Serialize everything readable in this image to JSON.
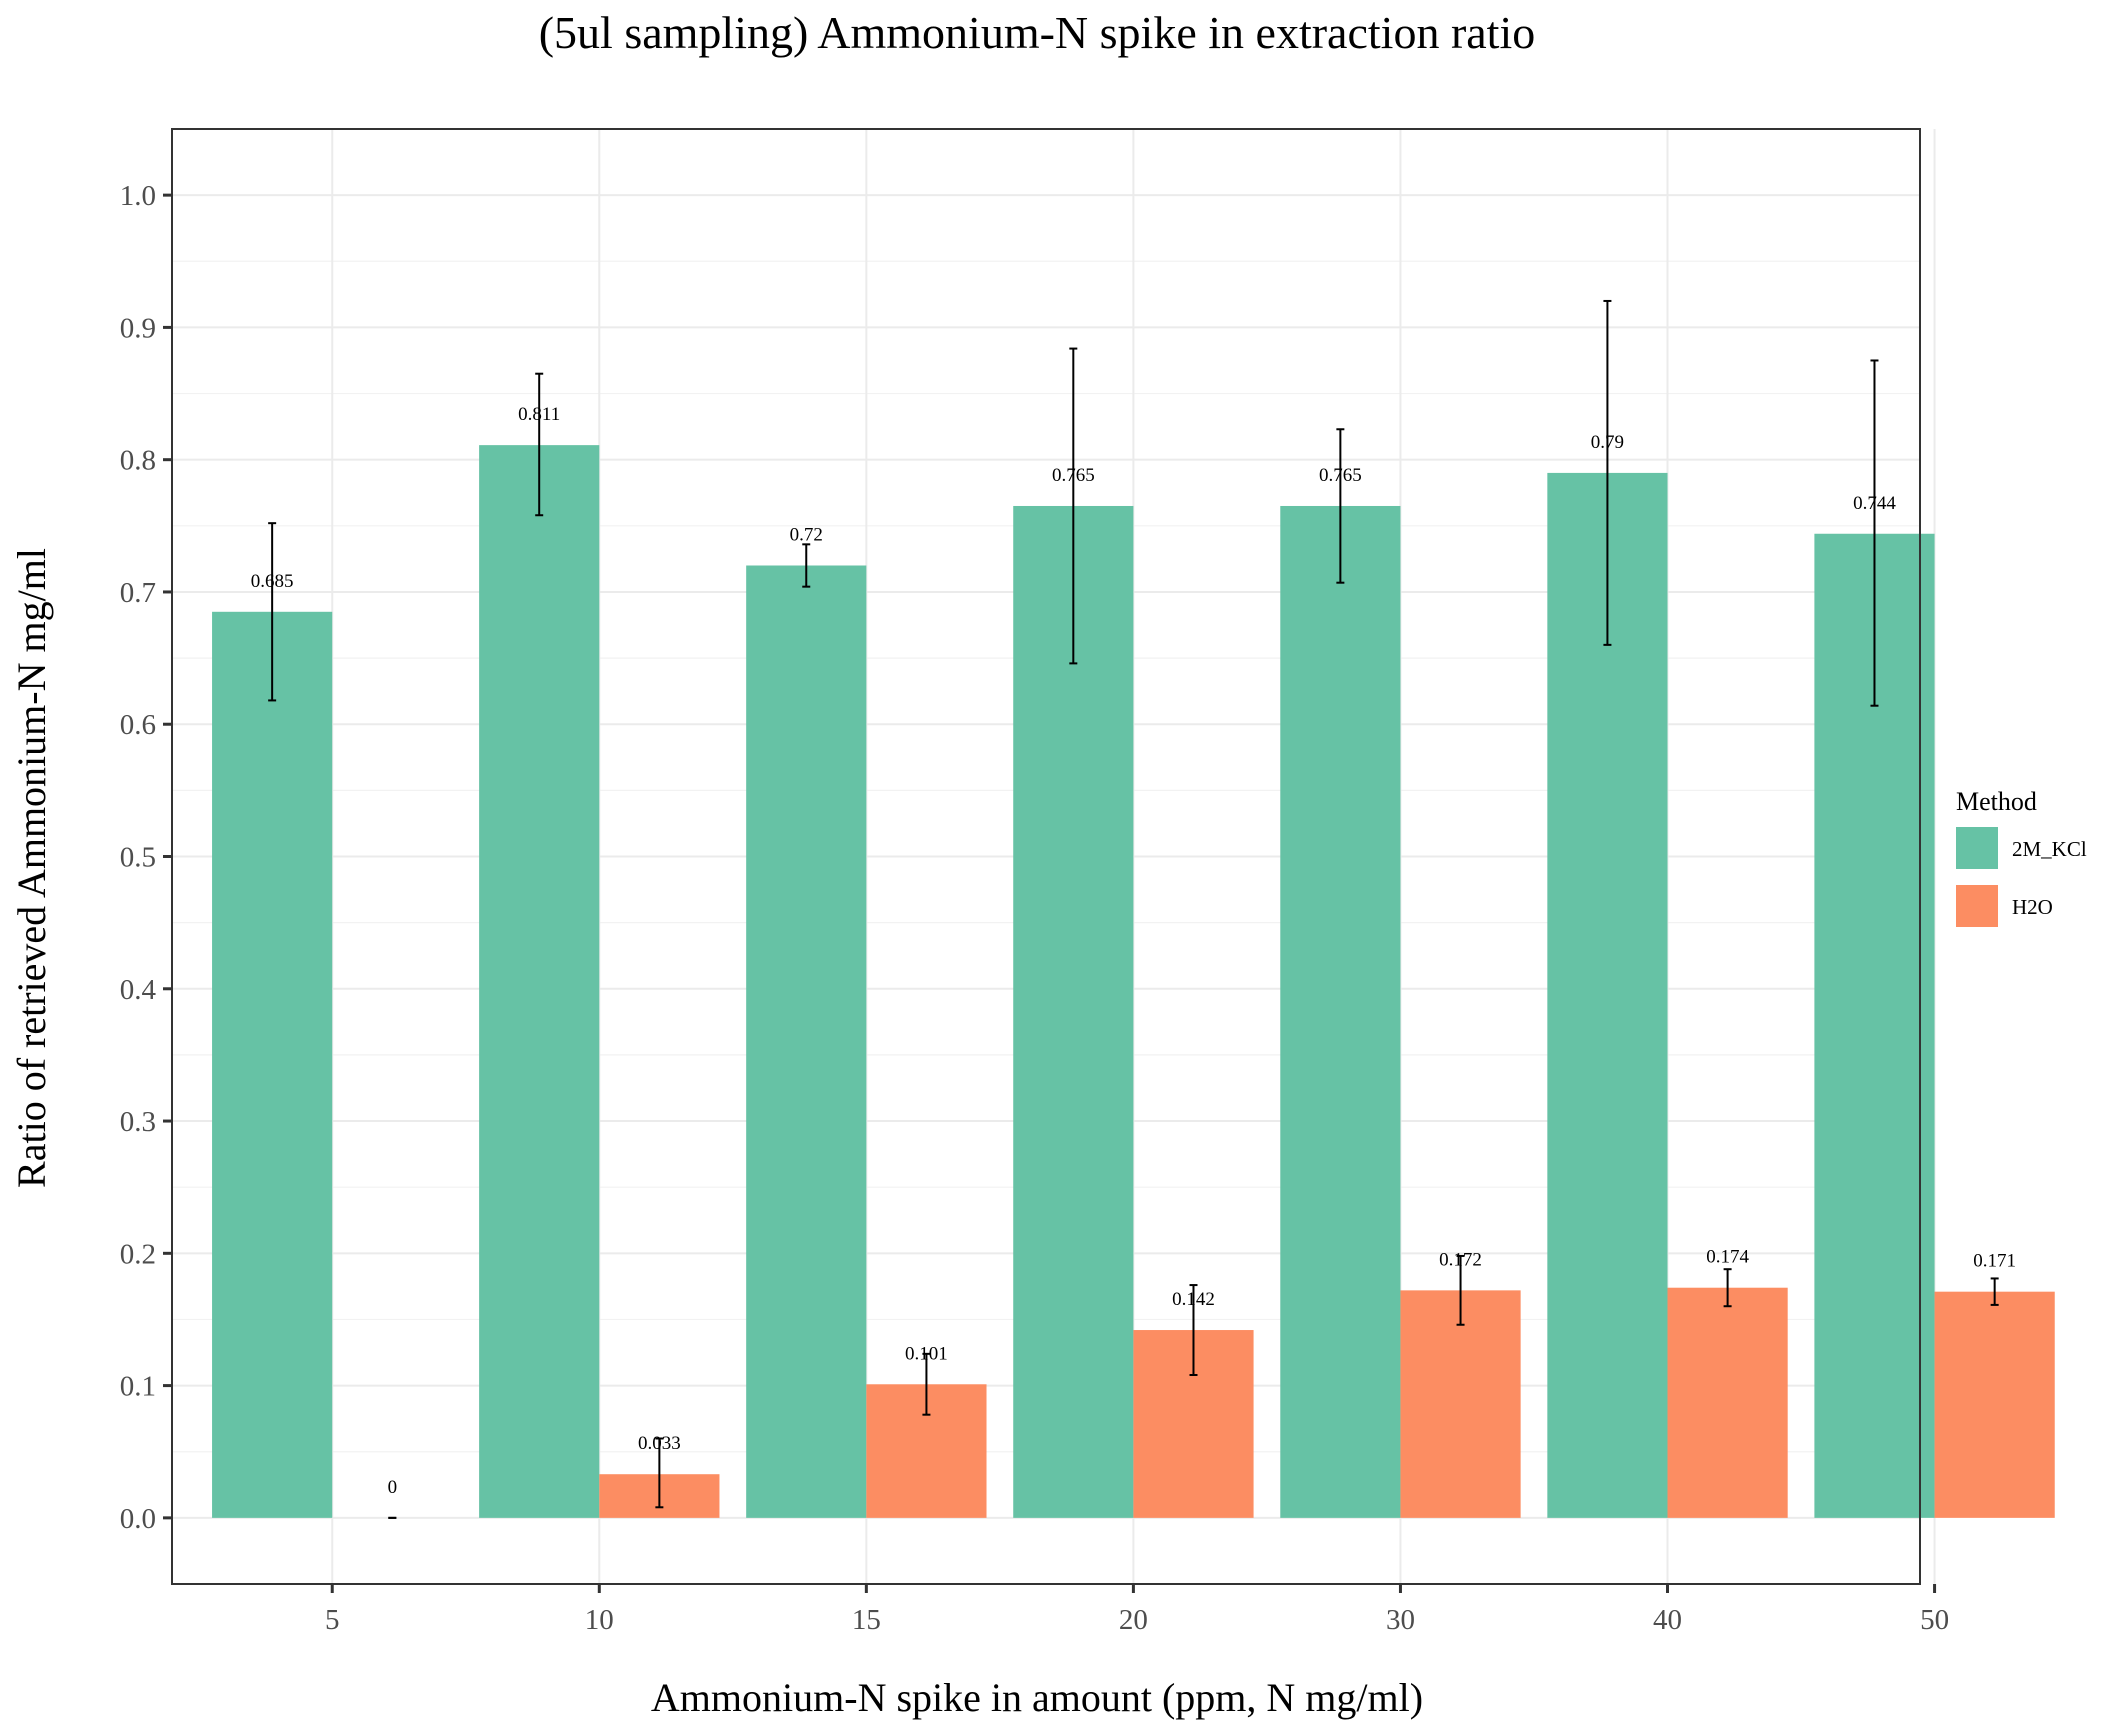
{
  "chart_data": {
    "type": "bar",
    "title": "(5ul sampling) Ammonium-N spike in extraction ratio",
    "xlabel": "Ammonium-N spike in amount (ppm, N mg/ml)",
    "ylabel": "Ratio of retrieved Ammonium-N mg/ml",
    "categories": [
      "5",
      "10",
      "15",
      "20",
      "30",
      "40",
      "50"
    ],
    "ylim": [
      -0.05,
      1.05
    ],
    "yticks": [
      0.0,
      0.1,
      0.2,
      0.3,
      0.4,
      0.5,
      0.6,
      0.7,
      0.8,
      0.9,
      1.0
    ],
    "ytick_labels": [
      "0.0",
      "0.1",
      "0.2",
      "0.3",
      "0.4",
      "0.5",
      "0.6",
      "0.7",
      "0.8",
      "0.9",
      "1.0"
    ],
    "grid": true,
    "legend": {
      "title": "Method",
      "position": "right"
    },
    "series": [
      {
        "name": "2M_KCl",
        "color": "#66c2a5",
        "values": [
          0.685,
          0.811,
          0.72,
          0.765,
          0.765,
          0.79,
          0.744
        ],
        "labels": [
          "0.685",
          "0.811",
          "0.72",
          "0.765",
          "0.765",
          "0.79",
          "0.744"
        ],
        "err_low": [
          0.618,
          0.758,
          0.704,
          0.646,
          0.707,
          0.66,
          0.614
        ],
        "err_high": [
          0.752,
          0.865,
          0.736,
          0.884,
          0.823,
          0.92,
          0.875
        ]
      },
      {
        "name": "H2O",
        "color": "#fc8d62",
        "values": [
          0,
          0.033,
          0.101,
          0.142,
          0.172,
          0.174,
          0.171
        ],
        "labels": [
          "0",
          "0.033",
          "0.101",
          "0.142",
          "0.172",
          "0.174",
          "0.171"
        ],
        "err_low": [
          0,
          0.008,
          0.078,
          0.108,
          0.146,
          0.16,
          0.161
        ],
        "err_high": [
          0,
          0.06,
          0.124,
          0.176,
          0.198,
          0.188,
          0.181
        ]
      }
    ]
  }
}
